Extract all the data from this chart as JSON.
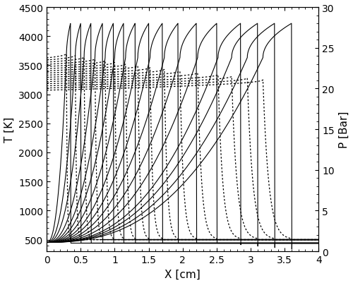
{
  "xlim": [
    0,
    4
  ],
  "ylim_T": [
    300,
    4500
  ],
  "ylim_P": [
    0,
    30
  ],
  "xlabel": "X [cm]",
  "ylabel_left": "T [K]",
  "ylabel_right": "P [Bar]",
  "yticks_T": [
    500,
    1000,
    1500,
    2000,
    2500,
    3000,
    3500,
    4000,
    4500
  ],
  "yticks_P": [
    0,
    5,
    10,
    15,
    20,
    25,
    30
  ],
  "xticks": [
    0,
    0.5,
    1.0,
    1.5,
    2.0,
    2.5,
    3.0,
    3.5,
    4.0
  ],
  "xticklabels": [
    "0",
    "0.5",
    "1",
    "1.5",
    "2",
    "2.5",
    "3",
    "3.5",
    "4"
  ],
  "figsize": [
    5.0,
    4.02
  ],
  "dpi": 100,
  "T_init": 500,
  "T_burnt_max": 3700,
  "P_init": 1.0,
  "P_CJ": 28.0,
  "n_profiles": 16,
  "shock_positions": [
    0.35,
    0.5,
    0.65,
    0.82,
    0.98,
    1.13,
    1.3,
    1.5,
    1.7,
    1.93,
    2.2,
    2.5,
    2.85,
    3.1,
    3.35,
    3.6
  ],
  "induction_lengths": [
    0.06,
    0.08,
    0.1,
    0.11,
    0.12,
    0.13,
    0.14,
    0.16,
    0.18,
    0.2,
    0.24,
    0.28,
    0.33,
    0.38,
    0.4,
    0.42
  ]
}
